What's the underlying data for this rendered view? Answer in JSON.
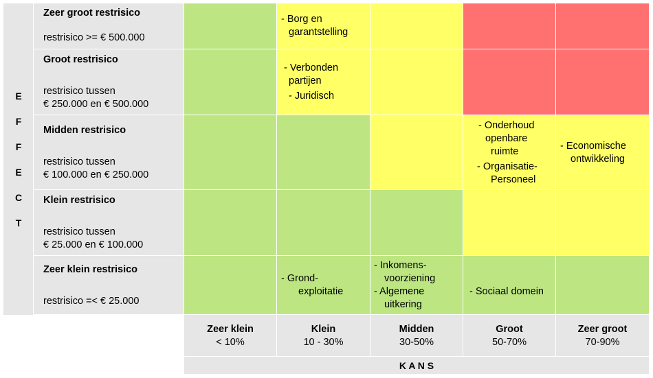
{
  "effect_letters": [
    "E",
    "F",
    "F",
    "E",
    "C",
    "T"
  ],
  "rows": [
    {
      "title": "Zeer groot restrisico",
      "desc_lines": [
        "restrisico >= € 500.000"
      ]
    },
    {
      "title": "Groot restrisico",
      "desc_lines": [
        "restrisico tussen",
        "€ 250.000 en € 500.000"
      ]
    },
    {
      "title": "Midden restrisico",
      "desc_lines": [
        "restrisico tussen",
        "€ 100.000 en € 250.000"
      ]
    },
    {
      "title": "Klein restrisico",
      "desc_lines": [
        "restrisico tussen",
        "€ 25.000 en € 100.000"
      ]
    },
    {
      "title": "Zeer klein restrisico",
      "desc_lines": [
        "restrisico  =< € 25.000"
      ]
    }
  ],
  "columns": [
    {
      "title": "Zeer klein",
      "range": "< 10%"
    },
    {
      "title": "Klein",
      "range": "10 - 30%"
    },
    {
      "title": "Midden",
      "range": "30-50%"
    },
    {
      "title": "Groot",
      "range": "50-70%"
    },
    {
      "title": "Zeer groot",
      "range": "70-90%"
    }
  ],
  "kans_label": "K A N S",
  "colors": {
    "green": "#bde683",
    "yellow": "#ffff66",
    "red": "#ff7070",
    "gray": "#e7e6e6"
  },
  "matrix_colors": [
    [
      "green",
      "yellow",
      "yellow",
      "red",
      "red"
    ],
    [
      "green",
      "yellow",
      "yellow",
      "red",
      "red"
    ],
    [
      "green",
      "green",
      "yellow",
      "yellow",
      "yellow"
    ],
    [
      "green",
      "green",
      "green",
      "yellow",
      "yellow"
    ],
    [
      "green",
      "green",
      "green",
      "green",
      "green"
    ]
  ],
  "cells": {
    "r0c1": [
      "- Borg en",
      "garantstelling"
    ],
    "r1c1": [
      "- Verbonden",
      "partijen",
      "- Juridisch"
    ],
    "r2c3": [
      "- Onderhoud",
      "openbare",
      "ruimte",
      "- Organisatie-",
      "Personeel"
    ],
    "r2c4": [
      "- Economische",
      "ontwikkeling"
    ],
    "r4c1": [
      "- Grond-",
      "exploitatie"
    ],
    "r4c2": [
      "- Inkomens-",
      "voorziening",
      "- Algemene",
      "uitkering"
    ],
    "r4c3": [
      "- Sociaal domein"
    ]
  }
}
